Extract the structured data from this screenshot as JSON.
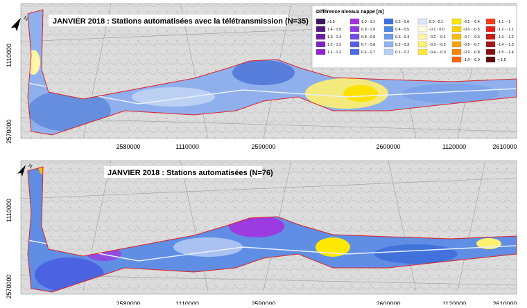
{
  "panels": [
    {
      "title": "JANVIER 2018 : Stations automatisées avec la télétransmission (N=35)",
      "x_labels": [
        "2580000",
        "1110000",
        "2590000",
        "2600000",
        "1120000",
        "2610000"
      ],
      "y_labels": [
        "1110000",
        "2570000"
      ]
    },
    {
      "title": "JANVIER 2018 : Stations automatisées (N=76)",
      "x_labels": [
        "2580000",
        "1110000",
        "2590000",
        "2600000",
        "1120000",
        "2610000"
      ],
      "y_labels": [
        "1110000",
        "2570000"
      ]
    }
  ],
  "legend": {
    "title": "Différence niveaux nappe [m]",
    "columns": [
      [
        {
          "label": ">1.5",
          "color": "#3d1560"
        },
        {
          "label": "1.4 - 1.5",
          "color": "#541a80"
        },
        {
          "label": "1.3 - 1.4",
          "color": "#6a1f9e"
        },
        {
          "label": "1.2 - 1.3",
          "color": "#7e22b8"
        },
        {
          "label": "1.1 - 1.2",
          "color": "#9126cf"
        }
      ],
      [
        {
          "label": "1.0 - 1.1",
          "color": "#a52ee0"
        },
        {
          "label": "0.9 - 1.0",
          "color": "#8a3ce6"
        },
        {
          "label": "0.8 - 0.9",
          "color": "#6e4de8"
        },
        {
          "label": "0.7 - 0.8",
          "color": "#5a5ce8"
        },
        {
          "label": "0.6 - 0.7",
          "color": "#4a6ae6"
        }
      ],
      [
        {
          "label": "0.5 - 0.6",
          "color": "#3a72e0"
        },
        {
          "label": "0.4 - 0.5",
          "color": "#4f87e6"
        },
        {
          "label": "0.3 - 0.4",
          "color": "#6a9ceb"
        },
        {
          "label": "0.2 - 0.3",
          "color": "#8fb6f0"
        },
        {
          "label": "0.1 - 0.2",
          "color": "#b5cff5"
        }
      ],
      [
        {
          "label": "0.0 - 0.1",
          "color": "#dce8fa"
        },
        {
          "label": "-0.1 - 0.0",
          "color": "#fffbe0"
        },
        {
          "label": "-0.2 - -0.1",
          "color": "#fff6a8"
        },
        {
          "label": "-0.3 - -0.2",
          "color": "#fff070"
        },
        {
          "label": "-0.4 - -0.3",
          "color": "#ffea3a"
        }
      ],
      [
        {
          "label": "-0.5 - -0.4",
          "color": "#ffe800"
        },
        {
          "label": "-0.6 - -0.5",
          "color": "#ffd400"
        },
        {
          "label": "-0.7 - -0.6",
          "color": "#ffbe00"
        },
        {
          "label": "-0.8 - -0.7",
          "color": "#ffa200"
        },
        {
          "label": "-0.9 - -0.8",
          "color": "#ff8400"
        },
        {
          "label": "-1.0 - -0.9",
          "color": "#ff6400"
        }
      ],
      [
        {
          "label": "-1.1 - -1",
          "color": "#ff3a1a"
        },
        {
          "label": "-1.2 - -1.1",
          "color": "#e82020"
        },
        {
          "label": "-1.3 - -1.2",
          "color": "#c81818"
        },
        {
          "label": "-1.4 - -1.3",
          "color": "#a81414"
        },
        {
          "label": "-1.5 - -1.4",
          "color": "#881010"
        },
        {
          "label": "<-1.5",
          "color": "#600a0a"
        }
      ]
    ]
  }
}
